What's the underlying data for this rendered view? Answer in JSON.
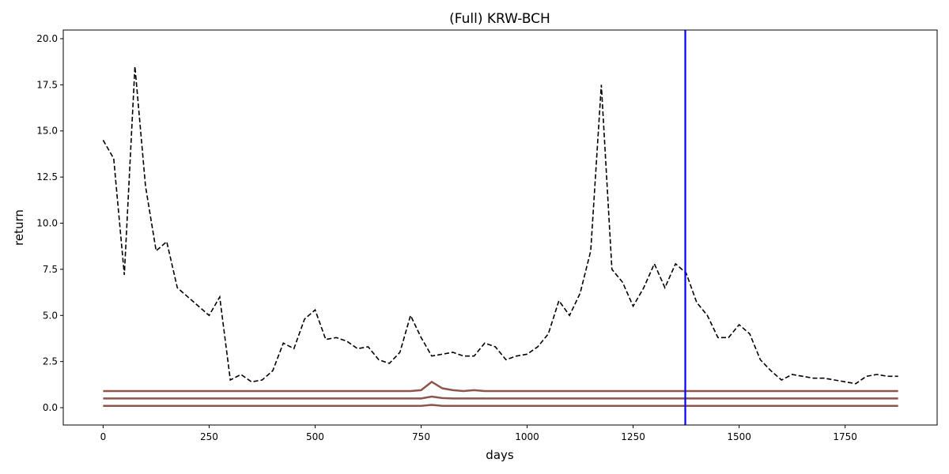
{
  "chart_data": {
    "type": "line",
    "title": "(Full) KRW-BCH",
    "x_label": "days",
    "y_label": "return",
    "x": [
      0,
      25,
      50,
      75,
      100,
      125,
      150,
      175,
      200,
      225,
      250,
      275,
      300,
      325,
      350,
      375,
      400,
      425,
      450,
      475,
      500,
      525,
      550,
      575,
      600,
      625,
      650,
      675,
      700,
      725,
      750,
      775,
      800,
      825,
      850,
      875,
      900,
      925,
      950,
      975,
      1000,
      1025,
      1050,
      1075,
      1100,
      1125,
      1150,
      1175,
      1200,
      1225,
      1250,
      1275,
      1300,
      1325,
      1350,
      1375,
      1400,
      1425,
      1450,
      1475,
      1500,
      1525,
      1550,
      1575,
      1600,
      1625,
      1650,
      1675,
      1700,
      1725,
      1750,
      1775,
      1800,
      1825,
      1850,
      1875
    ],
    "series": [
      {
        "color": "#000000",
        "dashed": true,
        "values": [
          14.5,
          13.5,
          7.2,
          18.5,
          12.0,
          8.5,
          9.0,
          6.5,
          6.0,
          5.5,
          5.0,
          6.0,
          1.5,
          1.8,
          1.4,
          1.5,
          2.0,
          3.5,
          3.2,
          4.8,
          5.3,
          3.7,
          3.8,
          3.6,
          3.2,
          3.3,
          2.6,
          2.4,
          3.0,
          5.0,
          3.8,
          2.8,
          2.9,
          3.0,
          2.8,
          2.8,
          3.5,
          3.3,
          2.6,
          2.8,
          2.9,
          3.3,
          4.0,
          5.8,
          5.0,
          6.2,
          8.5,
          17.5,
          7.5,
          6.8,
          5.5,
          6.5,
          7.8,
          6.5,
          7.8,
          7.3,
          5.7,
          5.0,
          3.8,
          3.8,
          4.5,
          4.0,
          2.6,
          2.0,
          1.5,
          1.8,
          1.7,
          1.6,
          1.6,
          1.5,
          1.4,
          1.3,
          1.7,
          1.8,
          1.7,
          1.7
        ]
      },
      {
        "color": "#8c564b",
        "values": [
          0.9,
          0.9,
          0.9,
          0.9,
          0.9,
          0.9,
          0.9,
          0.9,
          0.9,
          0.9,
          0.9,
          0.9,
          0.9,
          0.9,
          0.9,
          0.9,
          0.9,
          0.9,
          0.9,
          0.9,
          0.9,
          0.9,
          0.9,
          0.9,
          0.9,
          0.9,
          0.9,
          0.9,
          0.9,
          0.9,
          0.95,
          1.4,
          1.05,
          0.95,
          0.9,
          0.95,
          0.9,
          0.9,
          0.9,
          0.9,
          0.9,
          0.9,
          0.9,
          0.9,
          0.9,
          0.9,
          0.9,
          0.9,
          0.9,
          0.9,
          0.9,
          0.9,
          0.9,
          0.9,
          0.9,
          0.9,
          0.9,
          0.9,
          0.9,
          0.9,
          0.9,
          0.9,
          0.9,
          0.9,
          0.9,
          0.9,
          0.9,
          0.9,
          0.9,
          0.9,
          0.9,
          0.9,
          0.9,
          0.9,
          0.9,
          0.9
        ]
      },
      {
        "color": "#8c564b",
        "values": [
          0.5,
          0.5,
          0.5,
          0.5,
          0.5,
          0.5,
          0.5,
          0.5,
          0.5,
          0.5,
          0.5,
          0.5,
          0.5,
          0.5,
          0.5,
          0.5,
          0.5,
          0.5,
          0.5,
          0.5,
          0.5,
          0.5,
          0.5,
          0.5,
          0.5,
          0.5,
          0.5,
          0.5,
          0.5,
          0.5,
          0.5,
          0.6,
          0.52,
          0.5,
          0.5,
          0.5,
          0.5,
          0.5,
          0.5,
          0.5,
          0.5,
          0.5,
          0.5,
          0.5,
          0.5,
          0.5,
          0.5,
          0.5,
          0.5,
          0.5,
          0.5,
          0.5,
          0.5,
          0.5,
          0.5,
          0.5,
          0.5,
          0.5,
          0.5,
          0.5,
          0.5,
          0.5,
          0.5,
          0.5,
          0.5,
          0.5,
          0.5,
          0.5,
          0.5,
          0.5,
          0.5,
          0.5,
          0.5,
          0.5,
          0.5,
          0.5
        ]
      },
      {
        "color": "#8c564b",
        "values": [
          0.1,
          0.1,
          0.1,
          0.1,
          0.1,
          0.1,
          0.1,
          0.1,
          0.1,
          0.1,
          0.1,
          0.1,
          0.1,
          0.1,
          0.1,
          0.1,
          0.1,
          0.1,
          0.1,
          0.1,
          0.1,
          0.1,
          0.1,
          0.1,
          0.1,
          0.1,
          0.1,
          0.1,
          0.1,
          0.1,
          0.1,
          0.15,
          0.1,
          0.1,
          0.1,
          0.1,
          0.1,
          0.1,
          0.1,
          0.1,
          0.1,
          0.1,
          0.1,
          0.1,
          0.1,
          0.1,
          0.1,
          0.1,
          0.1,
          0.1,
          0.1,
          0.1,
          0.1,
          0.1,
          0.1,
          0.1,
          0.1,
          0.1,
          0.1,
          0.1,
          0.1,
          0.1,
          0.1,
          0.1,
          0.1,
          0.1,
          0.1,
          0.1,
          0.1,
          0.1,
          0.1,
          0.1,
          0.1,
          0.1,
          0.1,
          0.1
        ]
      }
    ],
    "vline": 1373,
    "vline_color": "#0000ff",
    "xlim": [
      -94,
      1967
    ],
    "ylim": [
      -0.94,
      20.47
    ],
    "xticks": [
      0,
      250,
      500,
      750,
      1000,
      1250,
      1500,
      1750
    ],
    "yticks": [
      {
        "value": 0,
        "label": "0.0"
      },
      2.5,
      {
        "value": 5,
        "label": "5.0"
      },
      7.5,
      {
        "value": 10,
        "label": "10.0"
      },
      12.5,
      {
        "value": 15,
        "label": "15.0"
      },
      17.5,
      {
        "value": 20,
        "label": "20.0"
      }
    ]
  }
}
